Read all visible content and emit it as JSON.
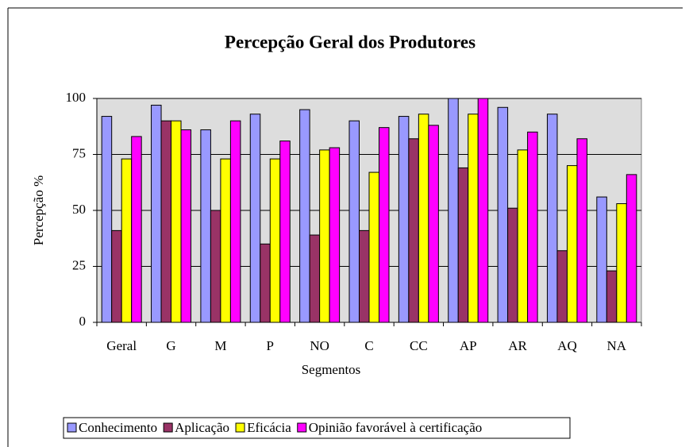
{
  "chart_data": {
    "type": "bar",
    "title": "Percepção Geral dos Produtores",
    "x_label": "Segmentos",
    "y_label": "Percepção %",
    "categories": [
      "Geral",
      "G",
      "M",
      "P",
      "NO",
      "C",
      "CC",
      "AP",
      "AR",
      "AQ",
      "NA"
    ],
    "series": [
      {
        "name": "Conhecimento",
        "color": "#9999ff",
        "values": [
          92,
          97,
          86,
          93,
          95,
          90,
          92,
          100,
          96,
          93,
          56
        ]
      },
      {
        "name": "Aplicação",
        "color": "#993366",
        "values": [
          41,
          90,
          50,
          35,
          39,
          41,
          82,
          69,
          51,
          32,
          23
        ]
      },
      {
        "name": "Eficácia",
        "color": "#ffff00",
        "values": [
          73,
          90,
          73,
          73,
          77,
          67,
          93,
          93,
          77,
          70,
          53
        ]
      },
      {
        "name": "Opinião favorável à certificação",
        "color": "#ff00ff",
        "values": [
          83,
          86,
          90,
          81,
          78,
          87,
          88,
          100,
          85,
          82,
          66
        ]
      }
    ],
    "ylim": [
      0,
      100
    ],
    "yticks": [
      0,
      25,
      50,
      75,
      100
    ],
    "grid": true
  }
}
